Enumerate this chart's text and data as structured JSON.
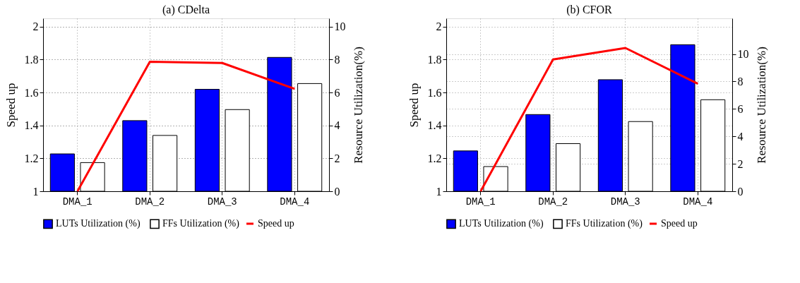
{
  "chart_data": [
    {
      "type": "bar",
      "title": "(a) CDelta",
      "ylabel": "Speed up",
      "y2label": "Resource Utilization(%)",
      "categories": [
        "DMA_1",
        "DMA_2",
        "DMA_3",
        "DMA_4"
      ],
      "series": [
        {
          "name": "LUTs Utilization (%)",
          "color": "#0000ff",
          "axis": "y2",
          "values": [
            2.27,
            4.29,
            6.19,
            8.13
          ]
        },
        {
          "name": "FFs Utilization (%)",
          "color": "#ffffff",
          "axis": "y2",
          "values": [
            1.74,
            3.39,
            4.96,
            6.54
          ]
        },
        {
          "name": "Speed up",
          "color": "#ff0000",
          "type": "line",
          "axis": "y",
          "values": [
            1.0,
            1.786,
            1.779,
            1.622
          ]
        }
      ],
      "ylim": [
        1,
        2.05
      ],
      "yticks": [
        1,
        1.2,
        1.4,
        1.6,
        1.8,
        2
      ],
      "y2lim": [
        0,
        10.5
      ],
      "y2ticks": [
        0,
        2,
        4,
        6,
        8,
        10
      ],
      "grid": true,
      "legend": "bottom"
    },
    {
      "type": "bar",
      "title": "(b) CFOR",
      "ylabel": "Speed up",
      "y2label": "Resource Utilization(%)",
      "categories": [
        "DMA_1",
        "DMA_2",
        "DMA_3",
        "DMA_4"
      ],
      "series": [
        {
          "name": "LUTs Utilization (%)",
          "color": "#0000ff",
          "axis": "y2",
          "values": [
            2.94,
            5.59,
            8.13,
            10.68
          ]
        },
        {
          "name": "FFs Utilization (%)",
          "color": "#ffffff",
          "axis": "y2",
          "values": [
            1.8,
            3.47,
            5.08,
            6.67
          ]
        },
        {
          "name": "Speed up",
          "color": "#ff0000",
          "type": "line",
          "axis": "y",
          "values": [
            1.0,
            1.8,
            1.87,
            1.653
          ]
        }
      ],
      "ylim": [
        1,
        2.05
      ],
      "yticks": [
        1,
        1.2,
        1.4,
        1.6,
        1.8,
        2
      ],
      "y2lim": [
        0,
        12.6
      ],
      "y2ticks": [
        0,
        2,
        4,
        6,
        8,
        10
      ],
      "grid": true,
      "legend": "bottom"
    }
  ]
}
